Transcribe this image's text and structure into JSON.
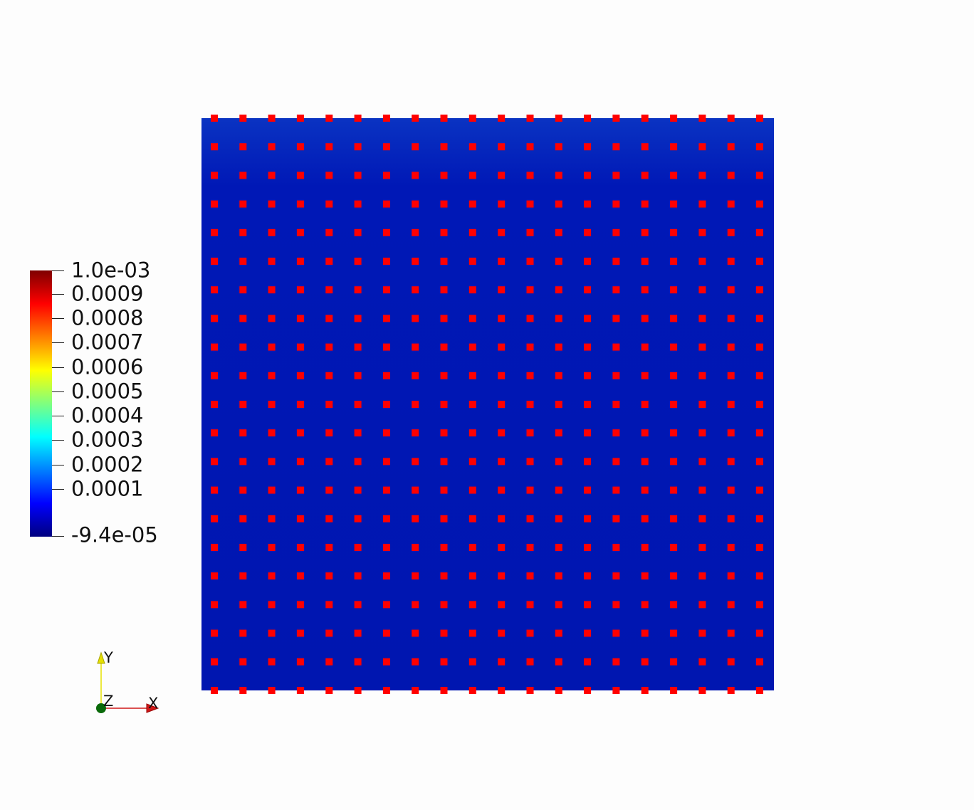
{
  "colors": {
    "background": "#fdfdfd",
    "mesh_fill": "#0016b4",
    "mesh_top": "#0a33c2",
    "node_marker": "#ff0000",
    "axis_x": "#d01818",
    "axis_y": "#e6e000",
    "axis_z": "#0a6a0a"
  },
  "mesh": {
    "node_columns": 20,
    "node_rows": 21
  },
  "scalar_bar": {
    "max_label": "1.0e-03",
    "min_label": "-9.4e-05",
    "tick_labels": [
      "0.0009",
      "0.0008",
      "0.0007",
      "0.0006",
      "0.0005",
      "0.0004",
      "0.0003",
      "0.0002",
      "0.0001"
    ],
    "range": [
      -9.4e-05,
      0.001
    ],
    "colormap": [
      "#00007f",
      "#0000ff",
      "#007fff",
      "#00ffff",
      "#7fff7f",
      "#ffff00",
      "#ff7f00",
      "#ff0000",
      "#7f0000"
    ]
  },
  "orientation_axes": {
    "x_label": "X",
    "y_label": "Y",
    "z_label": "Z"
  }
}
